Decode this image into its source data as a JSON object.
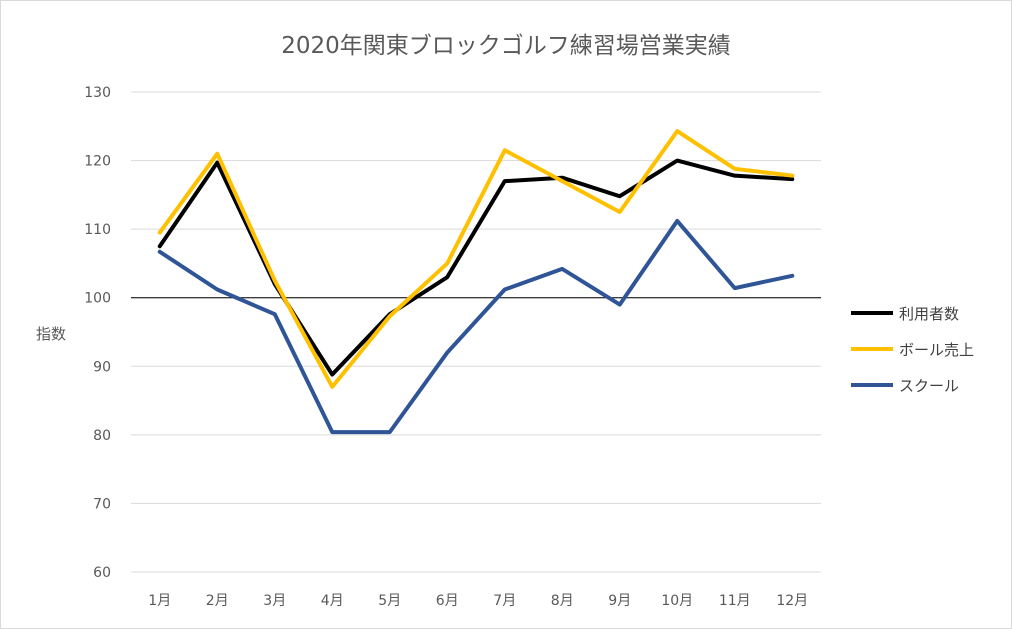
{
  "chart_data": {
    "type": "line",
    "title": "2020年関東ブロックゴルフ練習場営業実績",
    "xlabel": "",
    "ylabel": "指数",
    "categories": [
      "1月",
      "2月",
      "3月",
      "4月",
      "5月",
      "6月",
      "7月",
      "8月",
      "9月",
      "10月",
      "11月",
      "12月"
    ],
    "ylim": [
      60,
      130
    ],
    "yticks": [
      60,
      70,
      80,
      90,
      100,
      110,
      120,
      130
    ],
    "grid": true,
    "reference_line": 100,
    "legend_position": "right",
    "series": [
      {
        "name": "利用者数",
        "color": "#000000",
        "values": [
          107.5,
          119.7,
          102.0,
          88.8,
          97.6,
          103.0,
          117.0,
          117.5,
          114.8,
          120.0,
          117.8,
          117.3
        ]
      },
      {
        "name": "ボール売上",
        "color": "#ffc000",
        "values": [
          109.5,
          121.0,
          102.5,
          87.0,
          97.3,
          105.0,
          121.5,
          117.0,
          112.5,
          124.3,
          118.8,
          117.8
        ]
      },
      {
        "name": "スクール",
        "color": "#2f5597",
        "values": [
          106.7,
          101.2,
          97.6,
          80.4,
          80.4,
          92.0,
          101.2,
          104.2,
          99.0,
          111.2,
          101.4,
          103.2
        ]
      }
    ]
  }
}
